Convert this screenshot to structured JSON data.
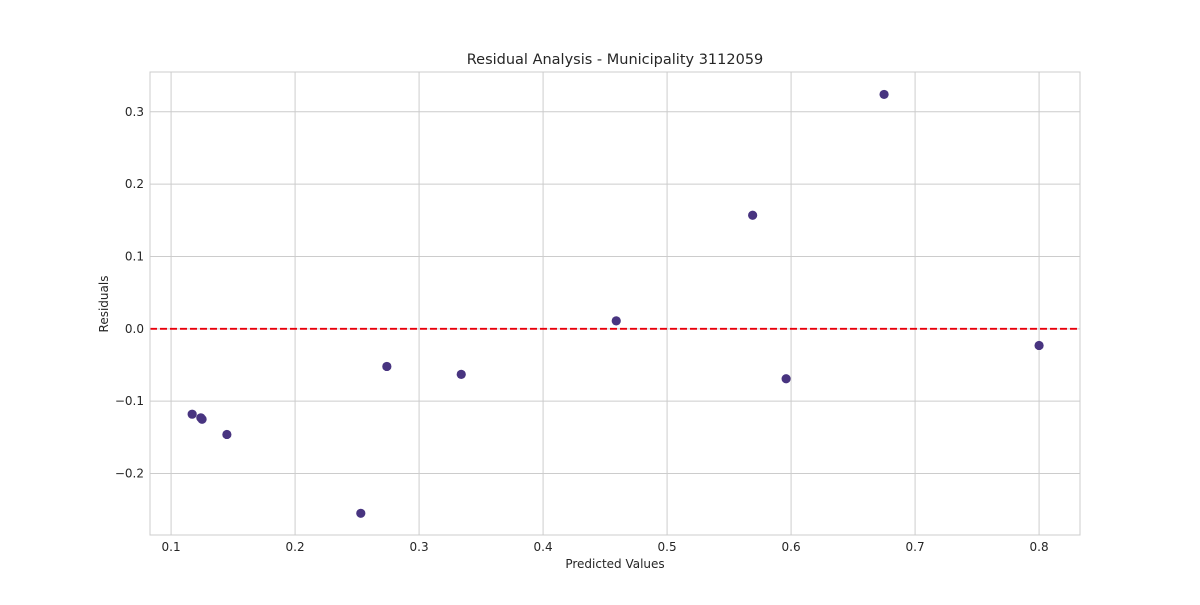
{
  "chart_data": {
    "type": "scatter",
    "title": "Residual Analysis - Municipality 3112059",
    "xlabel": "Predicted Values",
    "ylabel": "Residuals",
    "xlim": [
      0.083,
      0.833
    ],
    "ylim": [
      -0.285,
      0.355
    ],
    "x_ticks": [
      0.1,
      0.2,
      0.3,
      0.4,
      0.5,
      0.6,
      0.7,
      0.8
    ],
    "x_tick_labels": [
      "0.1",
      "0.2",
      "0.3",
      "0.4",
      "0.5",
      "0.6",
      "0.7",
      "0.8"
    ],
    "y_ticks": [
      -0.2,
      -0.1,
      0.0,
      0.1,
      0.2,
      0.3
    ],
    "y_tick_labels": [
      "−0.2",
      "−0.1",
      "0.0",
      "0.1",
      "0.2",
      "0.3"
    ],
    "grid": true,
    "reference_line": {
      "y": 0.0,
      "style": "dashed",
      "color": "#e8000b"
    },
    "series": [
      {
        "color": "#483480",
        "points": [
          {
            "x": 0.117,
            "y": -0.118
          },
          {
            "x": 0.124,
            "y": -0.123
          },
          {
            "x": 0.125,
            "y": -0.125
          },
          {
            "x": 0.145,
            "y": -0.146
          },
          {
            "x": 0.253,
            "y": -0.255
          },
          {
            "x": 0.274,
            "y": -0.052
          },
          {
            "x": 0.334,
            "y": -0.063
          },
          {
            "x": 0.459,
            "y": 0.011
          },
          {
            "x": 0.569,
            "y": 0.157
          },
          {
            "x": 0.596,
            "y": -0.069
          },
          {
            "x": 0.675,
            "y": 0.324
          },
          {
            "x": 0.8,
            "y": -0.023
          }
        ]
      }
    ]
  },
  "colors": {
    "grid": "#cccccc",
    "frame": "#cccccc",
    "text": "#262626"
  }
}
